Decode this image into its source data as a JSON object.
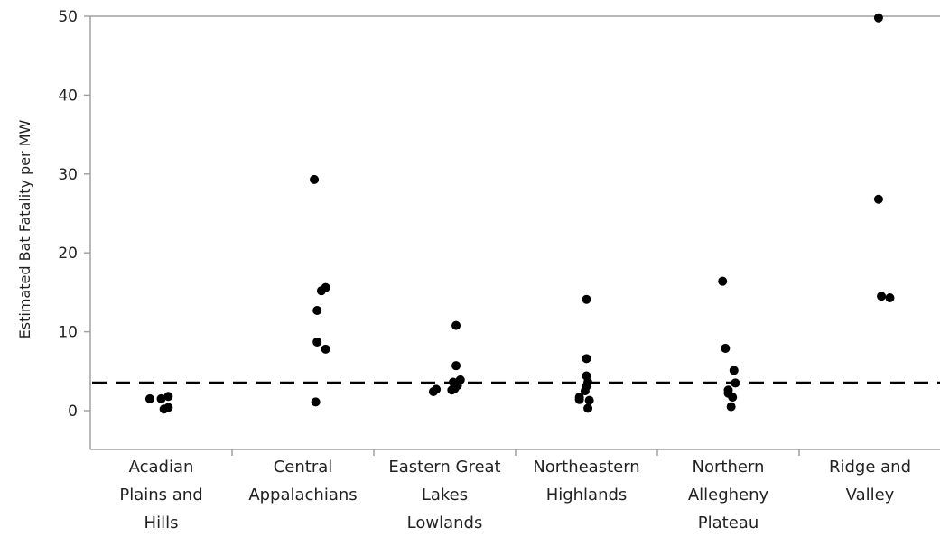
{
  "chart_data": {
    "type": "scatter",
    "title": "",
    "xlabel": "",
    "ylabel": "Estimated Bat Fatality per MW",
    "ylim": [
      -5,
      50
    ],
    "yticks": [
      0,
      10,
      20,
      30,
      40,
      50
    ],
    "grid": false,
    "categories": [
      [
        "Acadian",
        "Plains and",
        "Hills"
      ],
      [
        "Central",
        "Appalachians"
      ],
      [
        "Eastern Great",
        "Lakes",
        "Lowlands"
      ],
      [
        "Northeastern",
        "Highlands"
      ],
      [
        "Northern",
        "Allegheny",
        "Plateau"
      ],
      [
        "Ridge and",
        "Valley"
      ]
    ],
    "points": [
      [
        [
          -0.08,
          1.5
        ],
        [
          0.0,
          1.5
        ],
        [
          0.05,
          1.8
        ],
        [
          0.05,
          0.4
        ],
        [
          0.02,
          0.2
        ]
      ],
      [
        [
          0.08,
          29.3
        ],
        [
          0.1,
          12.7
        ],
        [
          0.13,
          15.2
        ],
        [
          0.16,
          15.6
        ],
        [
          0.1,
          8.7
        ],
        [
          0.16,
          7.8
        ],
        [
          0.09,
          1.1
        ]
      ],
      [
        [
          0.08,
          10.8
        ],
        [
          0.08,
          5.7
        ],
        [
          0.06,
          3.6
        ],
        [
          0.11,
          3.9
        ],
        [
          0.09,
          3.2
        ],
        [
          0.05,
          2.6
        ],
        [
          0.07,
          2.8
        ],
        [
          -0.08,
          2.4
        ],
        [
          -0.06,
          2.7
        ]
      ],
      [
        [
          0.0,
          14.1
        ],
        [
          0.0,
          6.6
        ],
        [
          0.0,
          4.4
        ],
        [
          0.01,
          3.6
        ],
        [
          0.0,
          3.1
        ],
        [
          -0.01,
          2.5
        ],
        [
          -0.05,
          1.7
        ],
        [
          -0.05,
          1.4
        ],
        [
          0.02,
          1.3
        ],
        [
          0.01,
          0.3
        ]
      ],
      [
        [
          -0.04,
          16.4
        ],
        [
          -0.02,
          7.9
        ],
        [
          0.04,
          5.1
        ],
        [
          0.05,
          3.5
        ],
        [
          0.0,
          2.6
        ],
        [
          0.0,
          2.2
        ],
        [
          0.03,
          1.7
        ],
        [
          0.02,
          0.5
        ]
      ],
      [
        [
          0.06,
          49.8
        ],
        [
          0.06,
          26.8
        ],
        [
          0.08,
          14.5
        ],
        [
          0.14,
          14.3
        ]
      ]
    ],
    "reference_line": {
      "y": 3.5,
      "style": "dashed"
    }
  }
}
